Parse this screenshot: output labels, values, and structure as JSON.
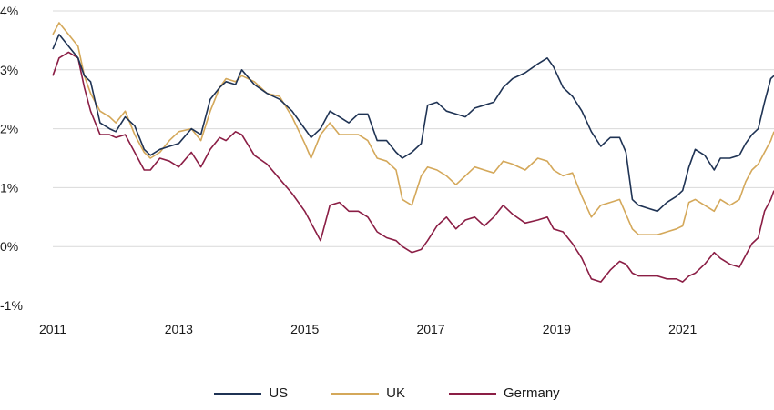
{
  "chart_data": {
    "type": "line",
    "title": "",
    "xlabel": "",
    "ylabel": "",
    "xlim": [
      2011.0,
      2022.45
    ],
    "ylim": [
      -1,
      4
    ],
    "grid": "horizontal",
    "legend_position": "bottom-center",
    "x_ticks": [
      2011,
      2013,
      2015,
      2017,
      2019,
      2021
    ],
    "x_tick_labels": [
      "2011",
      "2013",
      "2015",
      "2017",
      "2019",
      "2021"
    ],
    "y_ticks": [
      -1,
      0,
      1,
      2,
      3,
      4
    ],
    "y_tick_labels": [
      "-1%",
      "0%",
      "1%",
      "2%",
      "3%",
      "4%"
    ],
    "series": [
      {
        "name": "US",
        "color": "#1f3354",
        "x": [
          2011.0,
          2011.1,
          2011.25,
          2011.4,
          2011.5,
          2011.6,
          2011.75,
          2011.9,
          2012.0,
          2012.15,
          2012.3,
          2012.45,
          2012.55,
          2012.7,
          2012.85,
          2013.0,
          2013.2,
          2013.35,
          2013.5,
          2013.65,
          2013.75,
          2013.9,
          2014.0,
          2014.2,
          2014.4,
          2014.6,
          2014.8,
          2015.0,
          2015.1,
          2015.25,
          2015.4,
          2015.55,
          2015.7,
          2015.85,
          2016.0,
          2016.15,
          2016.3,
          2016.45,
          2016.55,
          2016.7,
          2016.85,
          2016.95,
          2017.1,
          2017.25,
          2017.4,
          2017.55,
          2017.7,
          2017.85,
          2018.0,
          2018.15,
          2018.3,
          2018.5,
          2018.7,
          2018.85,
          2018.95,
          2019.1,
          2019.25,
          2019.4,
          2019.55,
          2019.7,
          2019.85,
          2020.0,
          2020.1,
          2020.2,
          2020.3,
          2020.45,
          2020.6,
          2020.75,
          2020.9,
          2021.0,
          2021.1,
          2021.2,
          2021.35,
          2021.5,
          2021.6,
          2021.75,
          2021.9,
          2022.0,
          2022.1,
          2022.2,
          2022.3,
          2022.4,
          2022.45
        ],
        "values": [
          3.35,
          3.6,
          3.4,
          3.2,
          2.9,
          2.8,
          2.1,
          2.0,
          1.95,
          2.2,
          2.05,
          1.65,
          1.55,
          1.65,
          1.7,
          1.75,
          2.0,
          1.9,
          2.5,
          2.7,
          2.8,
          2.75,
          3.0,
          2.75,
          2.6,
          2.5,
          2.3,
          2.0,
          1.85,
          2.0,
          2.3,
          2.2,
          2.1,
          2.25,
          2.25,
          1.8,
          1.8,
          1.6,
          1.5,
          1.6,
          1.75,
          2.4,
          2.45,
          2.3,
          2.25,
          2.2,
          2.35,
          2.4,
          2.45,
          2.7,
          2.85,
          2.95,
          3.1,
          3.2,
          3.05,
          2.7,
          2.55,
          2.3,
          1.95,
          1.7,
          1.85,
          1.85,
          1.6,
          0.8,
          0.7,
          0.65,
          0.6,
          0.75,
          0.85,
          0.95,
          1.35,
          1.65,
          1.55,
          1.3,
          1.5,
          1.5,
          1.55,
          1.75,
          1.9,
          2.0,
          2.45,
          2.85,
          2.9
        ]
      },
      {
        "name": "UK",
        "color": "#d4a85a",
        "x": [
          2011.0,
          2011.1,
          2011.25,
          2011.4,
          2011.5,
          2011.6,
          2011.75,
          2011.9,
          2012.0,
          2012.15,
          2012.3,
          2012.45,
          2012.55,
          2012.7,
          2012.85,
          2013.0,
          2013.2,
          2013.35,
          2013.5,
          2013.65,
          2013.75,
          2013.9,
          2014.0,
          2014.2,
          2014.4,
          2014.6,
          2014.8,
          2015.0,
          2015.1,
          2015.25,
          2015.4,
          2015.55,
          2015.7,
          2015.85,
          2016.0,
          2016.15,
          2016.3,
          2016.45,
          2016.55,
          2016.7,
          2016.85,
          2016.95,
          2017.1,
          2017.25,
          2017.4,
          2017.55,
          2017.7,
          2017.85,
          2018.0,
          2018.15,
          2018.3,
          2018.5,
          2018.7,
          2018.85,
          2018.95,
          2019.1,
          2019.25,
          2019.4,
          2019.55,
          2019.7,
          2019.85,
          2020.0,
          2020.1,
          2020.2,
          2020.3,
          2020.45,
          2020.6,
          2020.75,
          2020.9,
          2021.0,
          2021.1,
          2021.2,
          2021.35,
          2021.5,
          2021.6,
          2021.75,
          2021.9,
          2022.0,
          2022.1,
          2022.2,
          2022.3,
          2022.4,
          2022.45
        ],
        "values": [
          3.6,
          3.8,
          3.6,
          3.4,
          2.9,
          2.6,
          2.3,
          2.2,
          2.1,
          2.3,
          1.9,
          1.6,
          1.5,
          1.6,
          1.8,
          1.95,
          2.0,
          1.8,
          2.3,
          2.7,
          2.85,
          2.8,
          2.9,
          2.8,
          2.6,
          2.55,
          2.2,
          1.75,
          1.5,
          1.9,
          2.1,
          1.9,
          1.9,
          1.9,
          1.8,
          1.5,
          1.45,
          1.3,
          0.8,
          0.7,
          1.2,
          1.35,
          1.3,
          1.2,
          1.05,
          1.2,
          1.35,
          1.3,
          1.25,
          1.45,
          1.4,
          1.3,
          1.5,
          1.45,
          1.3,
          1.2,
          1.25,
          0.85,
          0.5,
          0.7,
          0.75,
          0.8,
          0.55,
          0.3,
          0.2,
          0.2,
          0.2,
          0.25,
          0.3,
          0.35,
          0.75,
          0.8,
          0.7,
          0.6,
          0.8,
          0.7,
          0.8,
          1.1,
          1.3,
          1.4,
          1.6,
          1.8,
          1.95
        ]
      },
      {
        "name": "Germany",
        "color": "#8b1e45",
        "x": [
          2011.0,
          2011.1,
          2011.25,
          2011.4,
          2011.5,
          2011.6,
          2011.75,
          2011.9,
          2012.0,
          2012.15,
          2012.3,
          2012.45,
          2012.55,
          2012.7,
          2012.85,
          2013.0,
          2013.2,
          2013.35,
          2013.5,
          2013.65,
          2013.75,
          2013.9,
          2014.0,
          2014.2,
          2014.4,
          2014.6,
          2014.8,
          2015.0,
          2015.1,
          2015.25,
          2015.4,
          2015.55,
          2015.7,
          2015.85,
          2016.0,
          2016.15,
          2016.3,
          2016.45,
          2016.55,
          2016.7,
          2016.85,
          2016.95,
          2017.1,
          2017.25,
          2017.4,
          2017.55,
          2017.7,
          2017.85,
          2018.0,
          2018.15,
          2018.3,
          2018.5,
          2018.7,
          2018.85,
          2018.95,
          2019.1,
          2019.25,
          2019.4,
          2019.55,
          2019.7,
          2019.85,
          2020.0,
          2020.1,
          2020.2,
          2020.3,
          2020.45,
          2020.6,
          2020.75,
          2020.9,
          2021.0,
          2021.1,
          2021.2,
          2021.35,
          2021.5,
          2021.6,
          2021.75,
          2021.9,
          2022.0,
          2022.1,
          2022.2,
          2022.3,
          2022.4,
          2022.45
        ],
        "values": [
          2.9,
          3.2,
          3.3,
          3.2,
          2.7,
          2.3,
          1.9,
          1.9,
          1.85,
          1.9,
          1.6,
          1.3,
          1.3,
          1.5,
          1.45,
          1.35,
          1.6,
          1.35,
          1.65,
          1.85,
          1.8,
          1.95,
          1.9,
          1.55,
          1.4,
          1.15,
          0.9,
          0.6,
          0.4,
          0.1,
          0.7,
          0.75,
          0.6,
          0.6,
          0.5,
          0.25,
          0.15,
          0.1,
          0.0,
          -0.1,
          -0.05,
          0.1,
          0.35,
          0.5,
          0.3,
          0.45,
          0.5,
          0.35,
          0.5,
          0.7,
          0.55,
          0.4,
          0.45,
          0.5,
          0.3,
          0.25,
          0.05,
          -0.2,
          -0.55,
          -0.6,
          -0.4,
          -0.25,
          -0.3,
          -0.45,
          -0.5,
          -0.5,
          -0.5,
          -0.55,
          -0.55,
          -0.6,
          -0.5,
          -0.45,
          -0.3,
          -0.1,
          -0.2,
          -0.3,
          -0.35,
          -0.15,
          0.05,
          0.15,
          0.6,
          0.8,
          0.95
        ]
      }
    ]
  }
}
